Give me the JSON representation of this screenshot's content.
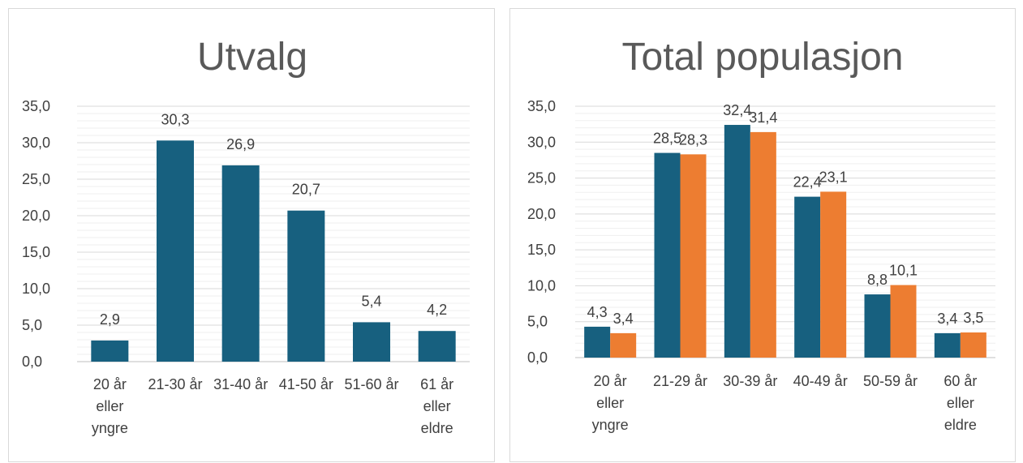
{
  "chart_data": [
    {
      "type": "bar",
      "title": "Utvalg",
      "categories": [
        [
          "20 år",
          "eller",
          "yngre"
        ],
        [
          "21-30 år"
        ],
        [
          "31-40 år"
        ],
        [
          "41-50 år"
        ],
        [
          "51-60 år"
        ],
        [
          "61 år",
          "eller",
          "eldre"
        ]
      ],
      "series": [
        {
          "values": [
            2.9,
            30.3,
            26.9,
            20.7,
            5.4,
            4.2
          ],
          "labels": [
            "2,9",
            "30,3",
            "26,9",
            "20,7",
            "5,4",
            "4,2"
          ],
          "color": "#17607f"
        }
      ],
      "ylim": [
        0,
        35
      ],
      "yticks": [
        "0,0",
        "5,0",
        "10,0",
        "15,0",
        "20,0",
        "25,0",
        "30,0",
        "35,0"
      ],
      "grid": true,
      "legend": "none"
    },
    {
      "type": "bar",
      "title": "Total populasjon",
      "categories": [
        [
          "20 år",
          "eller",
          "yngre"
        ],
        [
          "21-29 år"
        ],
        [
          "30-39 år"
        ],
        [
          "40-49 år"
        ],
        [
          "50-59 år"
        ],
        [
          "60 år",
          "eller",
          "eldre"
        ]
      ],
      "series": [
        {
          "values": [
            4.3,
            28.5,
            32.4,
            22.4,
            8.8,
            3.4
          ],
          "labels": [
            "4,3",
            "28,5",
            "32,4",
            "22,4",
            "8,8",
            "3,4"
          ],
          "color": "#17607f"
        },
        {
          "values": [
            3.4,
            28.3,
            31.4,
            23.1,
            10.1,
            3.5
          ],
          "labels": [
            "3,4",
            "28,3",
            "31,4",
            "23,1",
            "10,1",
            "3,5"
          ],
          "color": "#ed7d31"
        }
      ],
      "ylim": [
        0,
        35
      ],
      "yticks": [
        "0,0",
        "5,0",
        "10,0",
        "15,0",
        "20,0",
        "25,0",
        "30,0",
        "35,0"
      ],
      "grid": true,
      "legend": "none"
    }
  ]
}
